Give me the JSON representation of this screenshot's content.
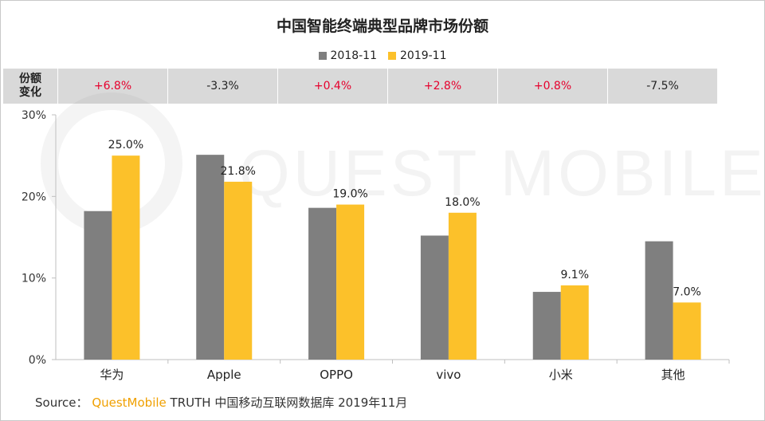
{
  "title": "中国智能终端典型品牌市场份额",
  "legend": [
    {
      "name": "2018-11",
      "color": "#7f7f7f"
    },
    {
      "name": "2019-11",
      "color": "#fcc12a"
    }
  ],
  "change_row": {
    "label": "份额\n变化",
    "values": [
      {
        "text": "+6.8%",
        "color": "#e6002d"
      },
      {
        "text": "-3.3%",
        "color": "#222222"
      },
      {
        "text": "+0.4%",
        "color": "#e6002d"
      },
      {
        "text": "+2.8%",
        "color": "#e6002d"
      },
      {
        "text": "+0.8%",
        "color": "#e6002d"
      },
      {
        "text": "-7.5%",
        "color": "#222222"
      }
    ]
  },
  "watermark": "QUEST MOBILE",
  "source": {
    "prefix": "Source：",
    "brand": "QuestMobile",
    "suffix": "TRUTH 中国移动互联网数据库 2019年11月"
  },
  "chart_data": {
    "type": "bar",
    "categories": [
      "华为",
      "Apple",
      "OPPO",
      "vivo",
      "小米",
      "其他"
    ],
    "series": [
      {
        "name": "2018-11",
        "color": "#7f7f7f",
        "values": [
          18.2,
          25.1,
          18.6,
          15.2,
          8.3,
          14.5
        ],
        "labels": [
          "",
          "",
          "",
          "",
          "",
          ""
        ]
      },
      {
        "name": "2019-11",
        "color": "#fcc12a",
        "values": [
          25.0,
          21.8,
          19.0,
          18.0,
          9.1,
          7.0
        ],
        "labels": [
          "25.0%",
          "21.8%",
          "19.0%",
          "18.0%",
          "9.1%",
          "7.0%"
        ]
      }
    ],
    "ylim": [
      0,
      30
    ],
    "yticks": [
      0,
      10,
      20,
      30
    ],
    "ytick_labels": [
      "0%",
      "10%",
      "20%",
      "30%"
    ],
    "grid": false
  }
}
